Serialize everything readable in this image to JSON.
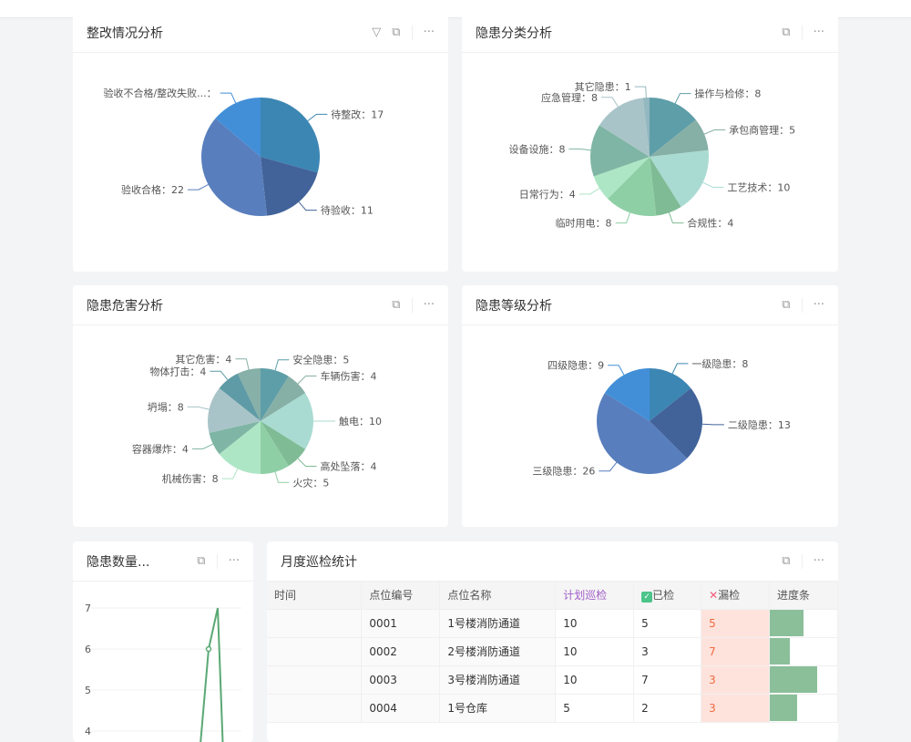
{
  "cards": {
    "c1": {
      "title": "整改情况分析"
    },
    "c2": {
      "title": "隐患分类分析"
    },
    "c3": {
      "title": "隐患危害分析"
    },
    "c4": {
      "title": "隐患等级分析"
    },
    "c5": {
      "title": "隐患数量..."
    },
    "c6": {
      "title": "月度巡检统计"
    }
  },
  "chart_data": [
    {
      "type": "pie",
      "slices": [
        {
          "label": "待整改",
          "value": 17,
          "color": "#3c86b4"
        },
        {
          "label": "待验收",
          "value": 11,
          "color": "#41639a"
        },
        {
          "label": "验收合格",
          "value": 22,
          "color": "#587ebd"
        },
        {
          "label": "验收不合格/整改失败...",
          "value": 8,
          "color": "#428fd8"
        }
      ]
    },
    {
      "type": "pie",
      "slices": [
        {
          "label": "操作与检修",
          "value": 8,
          "color": "#5e9ea8"
        },
        {
          "label": "承包商管理",
          "value": 5,
          "color": "#86afa6"
        },
        {
          "label": "工艺技术",
          "value": 10,
          "color": "#a9dbd2"
        },
        {
          "label": "合规性",
          "value": 4,
          "color": "#7fbb95"
        },
        {
          "label": "临时用电",
          "value": 8,
          "color": "#8fcfa6"
        },
        {
          "label": "日常行为",
          "value": 4,
          "color": "#ade6c5"
        },
        {
          "label": "设备设施",
          "value": 8,
          "color": "#7fb5a4"
        },
        {
          "label": "应急管理",
          "value": 8,
          "color": "#a9c4c8"
        },
        {
          "label": "其它隐患",
          "value": 1,
          "color": "#93b8bf"
        }
      ]
    },
    {
      "type": "pie",
      "slices": [
        {
          "label": "安全隐患",
          "value": 5,
          "color": "#5e9ea8"
        },
        {
          "label": "车辆伤害",
          "value": 4,
          "color": "#86afa6"
        },
        {
          "label": "触电",
          "value": 10,
          "color": "#a9dbd2"
        },
        {
          "label": "高处坠落",
          "value": 4,
          "color": "#7fbb95"
        },
        {
          "label": "火灾",
          "value": 5,
          "color": "#8fcfa6"
        },
        {
          "label": "机械伤害",
          "value": 8,
          "color": "#ade6c5"
        },
        {
          "label": "容器爆炸",
          "value": 4,
          "color": "#7fb5a4"
        },
        {
          "label": "坍塌",
          "value": 8,
          "color": "#a9c4c8"
        },
        {
          "label": "物体打击",
          "value": 4,
          "color": "#5f9ba6"
        },
        {
          "label": "其它危害",
          "value": 4,
          "color": "#86b0a8"
        }
      ]
    },
    {
      "type": "pie",
      "slices": [
        {
          "label": "一级隐患",
          "value": 8,
          "color": "#3c86b4"
        },
        {
          "label": "二级隐患",
          "value": 13,
          "color": "#41639a"
        },
        {
          "label": "三级隐患",
          "value": 26,
          "color": "#587ebd"
        },
        {
          "label": "四级隐患",
          "value": 9,
          "color": "#428fd8"
        }
      ]
    },
    {
      "type": "line",
      "yticks": [
        7,
        6,
        5,
        4
      ],
      "color": "#5aa874",
      "points": [
        {
          "y": 6
        },
        {
          "y": 7
        }
      ]
    }
  ],
  "table": {
    "headers": [
      "时间",
      "点位编号",
      "点位名称",
      "计划巡检",
      "已检",
      "漏检",
      "进度条"
    ],
    "rows": [
      {
        "id": "0001",
        "name": "1号楼消防通道",
        "plan": 10,
        "done": 5,
        "miss": 5
      },
      {
        "id": "0002",
        "name": "2号楼消防通道",
        "plan": 10,
        "done": 3,
        "miss": 7
      },
      {
        "id": "0003",
        "name": "3号楼消防通道",
        "plan": 10,
        "done": 7,
        "miss": 3
      },
      {
        "id": "0004",
        "name": "1号仓库",
        "plan": 5,
        "done": 2,
        "miss": 3
      }
    ]
  }
}
